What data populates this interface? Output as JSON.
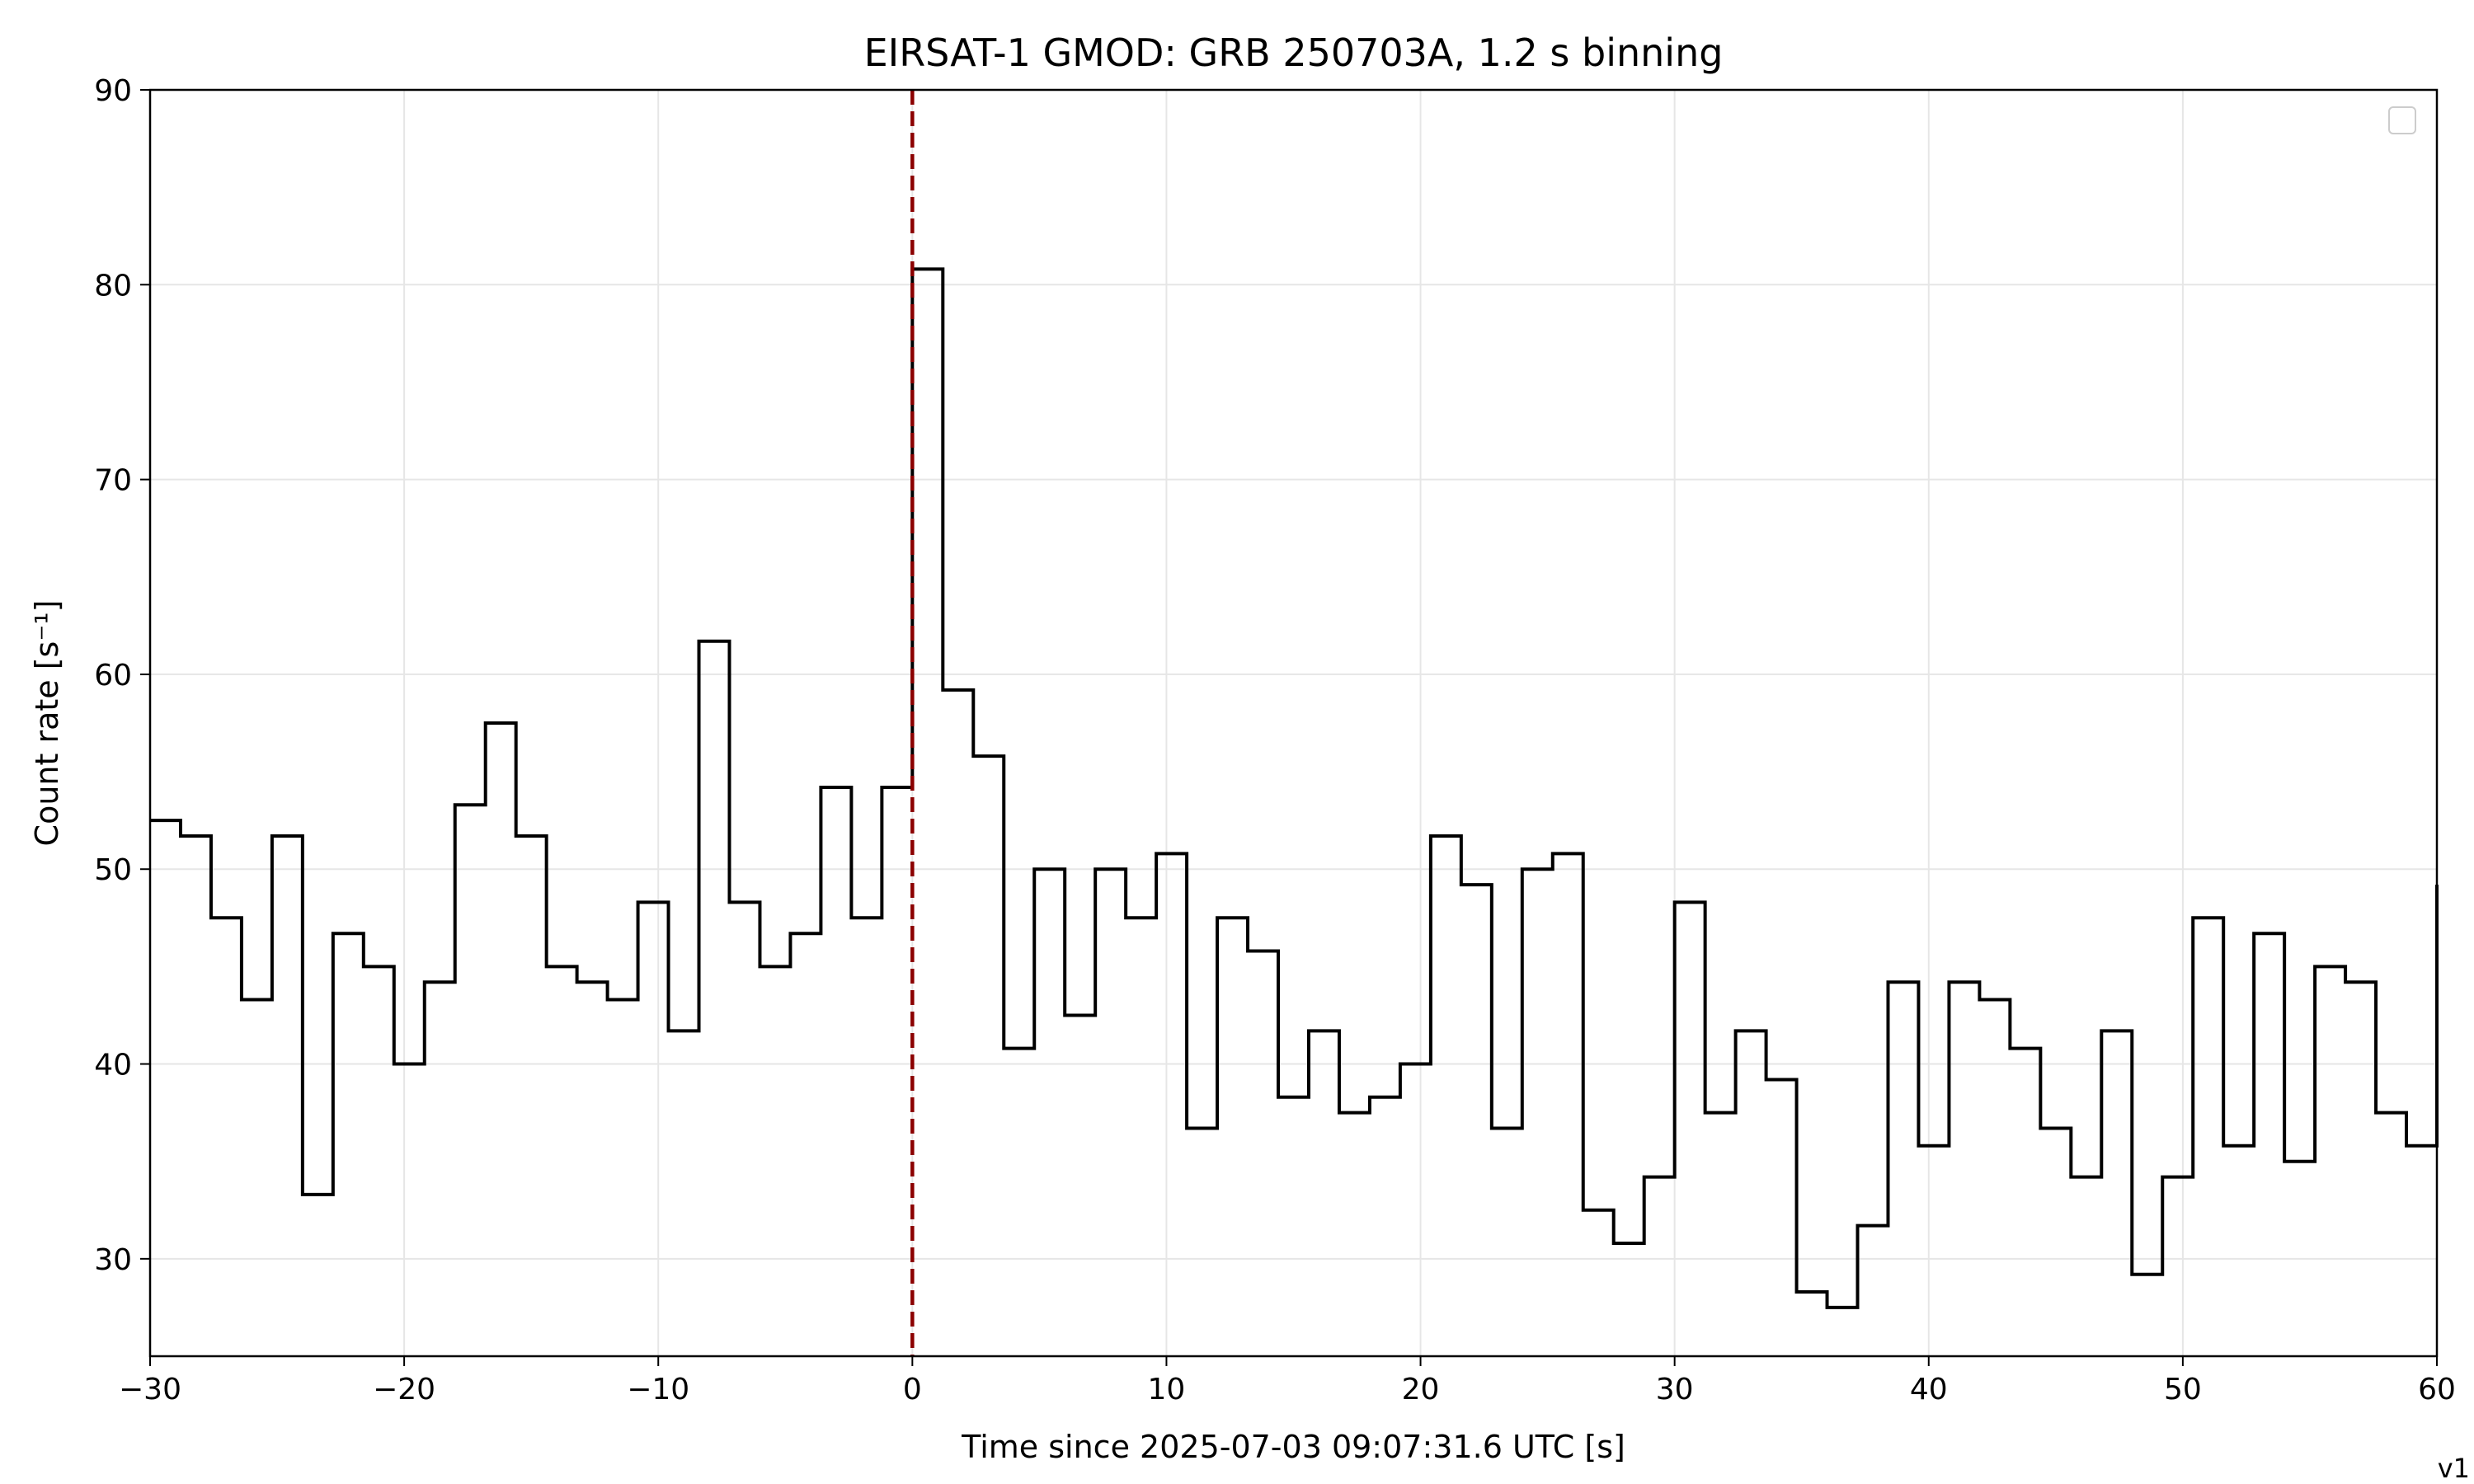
{
  "chart_data": {
    "type": "line",
    "drawstyle": "steps-post",
    "title": "EIRSAT-1 GMOD: GRB 250703A, 1.2 s binning",
    "xlabel": "Time since 2025-07-03 09:07:31.6 UTC [s]",
    "ylabel": "Count rate [s⁻¹]",
    "xlim": [
      -30,
      60
    ],
    "ylim": [
      25,
      90
    ],
    "xticks": [
      -30,
      -20,
      -10,
      0,
      10,
      20,
      30,
      40,
      50,
      60
    ],
    "yticks": [
      30,
      40,
      50,
      60,
      70,
      80,
      90
    ],
    "xtick_labels": [
      "−30",
      "−20",
      "−10",
      "0",
      "10",
      "20",
      "30",
      "40",
      "50",
      "60"
    ],
    "ytick_labels": [
      "30",
      "40",
      "50",
      "60",
      "70",
      "80",
      "90"
    ],
    "grid": true,
    "legend": "top-right (empty)",
    "bin_width": 1.2,
    "trigger_time": 0,
    "trigger_line_color": "#8b0000",
    "series": [
      {
        "color": "#000000",
        "x": [
          -30,
          -28.8,
          -27.6,
          -26.4,
          -25.2,
          -24.0,
          -22.8,
          -21.6,
          -20.4,
          -19.2,
          -18.0,
          -16.8,
          -15.6,
          -14.4,
          -13.2,
          -12.0,
          -10.8,
          -9.6,
          -8.4,
          -7.2,
          -6.0,
          -4.8,
          -3.6,
          -2.4,
          -1.2,
          0.0,
          1.2,
          2.4,
          3.6,
          4.8,
          6.0,
          7.2,
          8.4,
          9.6,
          10.8,
          12.0,
          13.2,
          14.4,
          15.6,
          16.8,
          18.0,
          19.2,
          20.4,
          21.6,
          22.8,
          24.0,
          25.2,
          26.4,
          27.6,
          28.8,
          30.0,
          31.2,
          32.4,
          33.6,
          34.8,
          36.0,
          37.2,
          38.4,
          39.6,
          40.8,
          42.0,
          43.2,
          44.4,
          45.6,
          46.8,
          48.0,
          49.2,
          50.4,
          51.6,
          52.8,
          54.0,
          55.2,
          56.4,
          57.6,
          58.8,
          60.0
        ],
        "values": [
          52.5,
          51.7,
          47.5,
          43.3,
          51.7,
          33.3,
          46.7,
          45.0,
          40.0,
          44.2,
          53.3,
          57.5,
          51.7,
          45.0,
          44.2,
          43.3,
          48.3,
          41.7,
          61.7,
          48.3,
          45.0,
          46.7,
          54.2,
          47.5,
          54.2,
          80.8,
          59.2,
          55.8,
          40.8,
          50.0,
          42.5,
          50.0,
          47.5,
          50.8,
          36.7,
          47.5,
          45.8,
          38.3,
          41.7,
          37.5,
          38.3,
          40.0,
          51.7,
          49.2,
          36.7,
          50.0,
          50.8,
          32.5,
          30.8,
          34.2,
          48.3,
          37.5,
          41.7,
          39.2,
          28.3,
          27.5,
          31.7,
          44.2,
          35.8,
          44.2,
          43.3,
          40.8,
          36.7,
          34.2,
          41.7,
          29.2,
          34.2,
          47.5,
          35.8,
          46.7,
          35.0,
          45.0,
          44.2,
          37.5,
          35.8,
          49.2
        ]
      }
    ]
  },
  "version_label": "v1"
}
